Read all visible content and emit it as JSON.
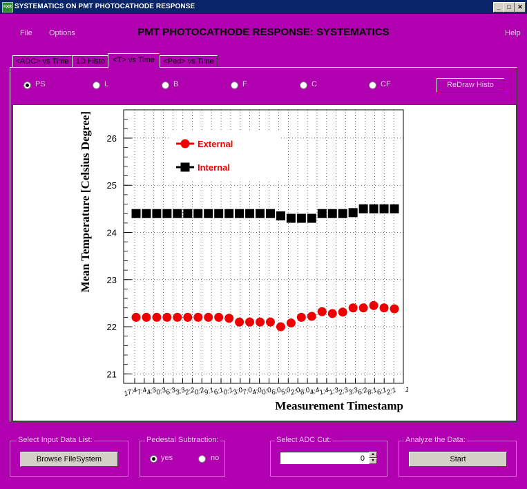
{
  "window": {
    "title": "SYSTEMATICS ON PMT PHOTOCATHODE RESPONSE",
    "icon_text": "root",
    "minimize_glyph": "_",
    "maximize_glyph": "□",
    "close_glyph": "✕"
  },
  "menu": {
    "file": "File",
    "options": "Options",
    "help": "Help"
  },
  "app_title": "PMT PHOTOCATHODE RESPONSE: SYSTEMATICS",
  "tabs": [
    "<ADC> vs Time",
    "1D Histo",
    "<T> vs Time",
    "<Ped> vs Time"
  ],
  "active_tab": 2,
  "radios": [
    "PS",
    "L",
    "B",
    "F",
    "C",
    "CF"
  ],
  "selected_radio": "PS",
  "redraw_label": "ReDraw Histo",
  "chart_data": {
    "type": "scatter",
    "xlabel": "Measurement Timestamp",
    "ylabel": "Mean Temperature [Celsius Degree]",
    "ylim": [
      20.8,
      26.6
    ],
    "yticks": [
      "21",
      "22",
      "23",
      "24",
      "25",
      "26"
    ],
    "x_tick_labels": [
      "17:4",
      "7:4",
      "4:3",
      "0:3",
      "6:3",
      "3:3",
      "2:2",
      "0:2",
      "9:1",
      "6:1",
      "0:1",
      "3:0",
      "7:0",
      "4:0",
      "0:0",
      "6:0",
      "5:0",
      "2:0",
      "8:0",
      "4:4",
      "1:4",
      "1:3",
      "2:3",
      "3:3",
      "6:2",
      "8:1",
      "6:1",
      "2:1"
    ],
    "x_tick_label_last": "1",
    "series": [
      {
        "name": "External",
        "color": "#ee0000",
        "marker": "circle",
        "values": [
          22.2,
          22.2,
          22.2,
          22.2,
          22.2,
          22.2,
          22.2,
          22.2,
          22.2,
          22.18,
          22.1,
          22.1,
          22.1,
          22.1,
          22.0,
          22.08,
          22.2,
          22.22,
          22.32,
          22.28,
          22.31,
          22.4,
          22.4,
          22.45,
          22.4,
          22.38
        ]
      },
      {
        "name": "Internal",
        "color": "#000000",
        "marker": "square",
        "values": [
          24.4,
          24.4,
          24.4,
          24.4,
          24.4,
          24.4,
          24.4,
          24.4,
          24.4,
          24.4,
          24.4,
          24.4,
          24.4,
          24.4,
          24.35,
          24.3,
          24.3,
          24.3,
          24.4,
          24.4,
          24.4,
          24.42,
          24.5,
          24.5,
          24.5,
          24.5
        ]
      }
    ],
    "legend_position": "top-left",
    "grid": true
  },
  "groups": {
    "input": {
      "title": "Select Input Data List:",
      "button": "Browse FileSystem"
    },
    "pedestal": {
      "title": "Pedestal Subtraction:",
      "yes": "yes",
      "no": "no",
      "selected": "yes"
    },
    "adc_cut": {
      "title": "Select ADC Cut:",
      "value": "0",
      "up_glyph": "▲",
      "down_glyph": "▼"
    },
    "analyze": {
      "title": "Analyze the Data:",
      "button": "Start"
    }
  }
}
